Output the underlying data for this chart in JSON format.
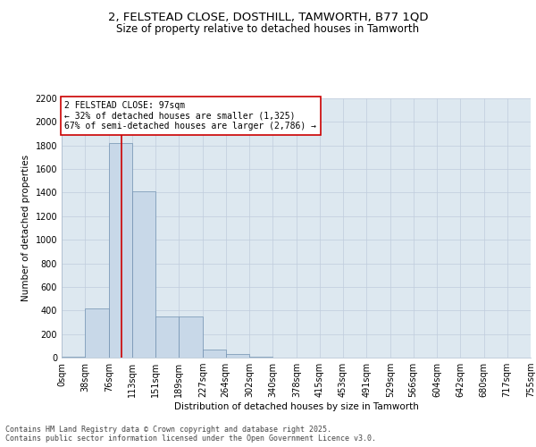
{
  "title_line1": "2, FELSTEAD CLOSE, DOSTHILL, TAMWORTH, B77 1QD",
  "title_line2": "Size of property relative to detached houses in Tamworth",
  "xlabel": "Distribution of detached houses by size in Tamworth",
  "ylabel": "Number of detached properties",
  "bin_labels": [
    "0sqm",
    "38sqm",
    "76sqm",
    "113sqm",
    "151sqm",
    "189sqm",
    "227sqm",
    "264sqm",
    "302sqm",
    "340sqm",
    "378sqm",
    "415sqm",
    "453sqm",
    "491sqm",
    "529sqm",
    "566sqm",
    "604sqm",
    "642sqm",
    "680sqm",
    "717sqm",
    "755sqm"
  ],
  "bin_edges": [
    0,
    38,
    76,
    113,
    151,
    189,
    227,
    264,
    302,
    340,
    378,
    415,
    453,
    491,
    529,
    566,
    604,
    642,
    680,
    717,
    755
  ],
  "bar_heights": [
    5,
    420,
    1820,
    1410,
    350,
    350,
    70,
    30,
    10,
    0,
    0,
    0,
    0,
    0,
    0,
    0,
    0,
    0,
    0,
    0
  ],
  "bar_color": "#c8d8e8",
  "bar_edge_color": "#7090b0",
  "property_size": 97,
  "property_line_color": "#cc0000",
  "annotation_text": "2 FELSTEAD CLOSE: 97sqm\n← 32% of detached houses are smaller (1,325)\n67% of semi-detached houses are larger (2,786) →",
  "annotation_box_color": "#ffffff",
  "annotation_box_edge_color": "#cc0000",
  "ylim": [
    0,
    2200
  ],
  "yticks": [
    0,
    200,
    400,
    600,
    800,
    1000,
    1200,
    1400,
    1600,
    1800,
    2000,
    2200
  ],
  "grid_color": "#c0ccdd",
  "background_color": "#dde8f0",
  "footer_text": "Contains HM Land Registry data © Crown copyright and database right 2025.\nContains public sector information licensed under the Open Government Licence v3.0.",
  "title_fontsize": 9.5,
  "subtitle_fontsize": 8.5,
  "axis_label_fontsize": 7.5,
  "tick_fontsize": 7,
  "annotation_fontsize": 7,
  "footer_fontsize": 6
}
